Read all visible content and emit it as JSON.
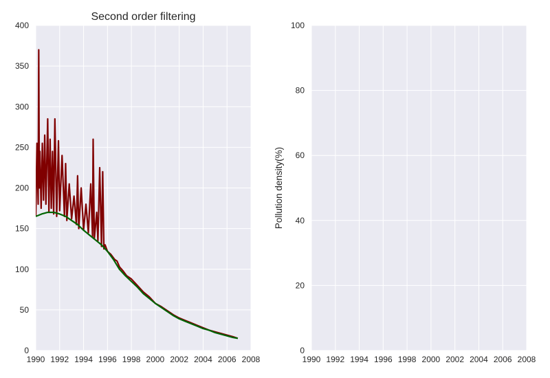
{
  "chart_data": [
    {
      "type": "line",
      "title": "Second order filtering",
      "xlabel": "",
      "ylabel": "",
      "xlim": [
        1990,
        2008
      ],
      "ylim": [
        0,
        400
      ],
      "x_ticks": [
        "1990",
        "1992",
        "1994",
        "1996",
        "1998",
        "2000",
        "2002",
        "2004",
        "2006",
        "2008"
      ],
      "y_ticks": [
        "0",
        "50",
        "100",
        "150",
        "200",
        "250",
        "300",
        "350",
        "400"
      ],
      "grid": true,
      "background": "#eaeaf2",
      "series": [
        {
          "color": "#800000",
          "x": [
            1990.0,
            1990.1,
            1990.2,
            1990.25,
            1990.3,
            1990.35,
            1990.45,
            1990.55,
            1990.65,
            1990.75,
            1990.85,
            1991.0,
            1991.1,
            1991.2,
            1991.3,
            1991.4,
            1991.5,
            1991.6,
            1991.75,
            1991.9,
            1992.0,
            1992.2,
            1992.4,
            1992.5,
            1992.6,
            1992.8,
            1993.0,
            1993.2,
            1993.4,
            1993.5,
            1993.6,
            1993.8,
            1994.0,
            1994.2,
            1994.4,
            1994.6,
            1994.75,
            1994.8,
            1994.9,
            1995.1,
            1995.2,
            1995.35,
            1995.5,
            1995.6,
            1995.7,
            1995.8,
            1996.0,
            1996.3,
            1996.6,
            1996.8,
            1997.0,
            1997.3,
            1997.6,
            1998.0,
            1998.5,
            1999.0,
            1999.5,
            2000.0,
            2000.5,
            2001.0,
            2001.5,
            2002.0,
            2002.5,
            2003.0,
            2003.5,
            2004.0,
            2004.5,
            2005.0,
            2005.5,
            2006.0,
            2006.5,
            2006.9
          ],
          "y": [
            165,
            255,
            180,
            370,
            200,
            245,
            175,
            255,
            185,
            265,
            180,
            285,
            170,
            260,
            175,
            245,
            168,
            285,
            165,
            258,
            172,
            240,
            165,
            230,
            160,
            205,
            162,
            190,
            155,
            215,
            150,
            200,
            148,
            180,
            145,
            205,
            140,
            260,
            138,
            170,
            135,
            225,
            128,
            220,
            125,
            130,
            122,
            118,
            112,
            110,
            103,
            98,
            92,
            88,
            80,
            72,
            66,
            58,
            54,
            49,
            44,
            40,
            37,
            34,
            31,
            28,
            25,
            23,
            21,
            19,
            17,
            15
          ]
        },
        {
          "color": "#006400",
          "x": [
            1990.0,
            1990.5,
            1991.0,
            1991.5,
            1992.0,
            1992.5,
            1993.0,
            1993.5,
            1994.0,
            1994.5,
            1995.0,
            1995.5,
            1996.0,
            1996.5,
            1997.0,
            1997.5,
            1998.0,
            1998.5,
            1999.0,
            1999.5,
            2000.0,
            2000.5,
            2001.0,
            2001.5,
            2002.0,
            2002.5,
            2003.0,
            2003.5,
            2004.0,
            2004.5,
            2005.0,
            2005.5,
            2006.0,
            2006.5,
            2006.9
          ],
          "y": [
            165,
            168,
            170,
            170,
            168,
            165,
            160,
            155,
            148,
            142,
            136,
            130,
            122,
            112,
            100,
            92,
            85,
            78,
            70,
            64,
            58,
            53,
            48,
            43,
            39,
            36,
            33,
            30,
            27,
            25,
            22,
            20,
            18,
            16,
            15
          ]
        }
      ]
    },
    {
      "type": "line",
      "title": "",
      "xlabel": "",
      "ylabel": "Pollution density(%)",
      "xlim": [
        1990,
        2008
      ],
      "ylim": [
        0,
        100
      ],
      "x_ticks": [
        "1990",
        "1992",
        "1994",
        "1996",
        "1998",
        "2000",
        "2002",
        "2004",
        "2006",
        "2008"
      ],
      "y_ticks": [
        "0",
        "20",
        "40",
        "60",
        "80",
        "100"
      ],
      "grid": true,
      "background": "#eaeaf2",
      "series": []
    }
  ]
}
